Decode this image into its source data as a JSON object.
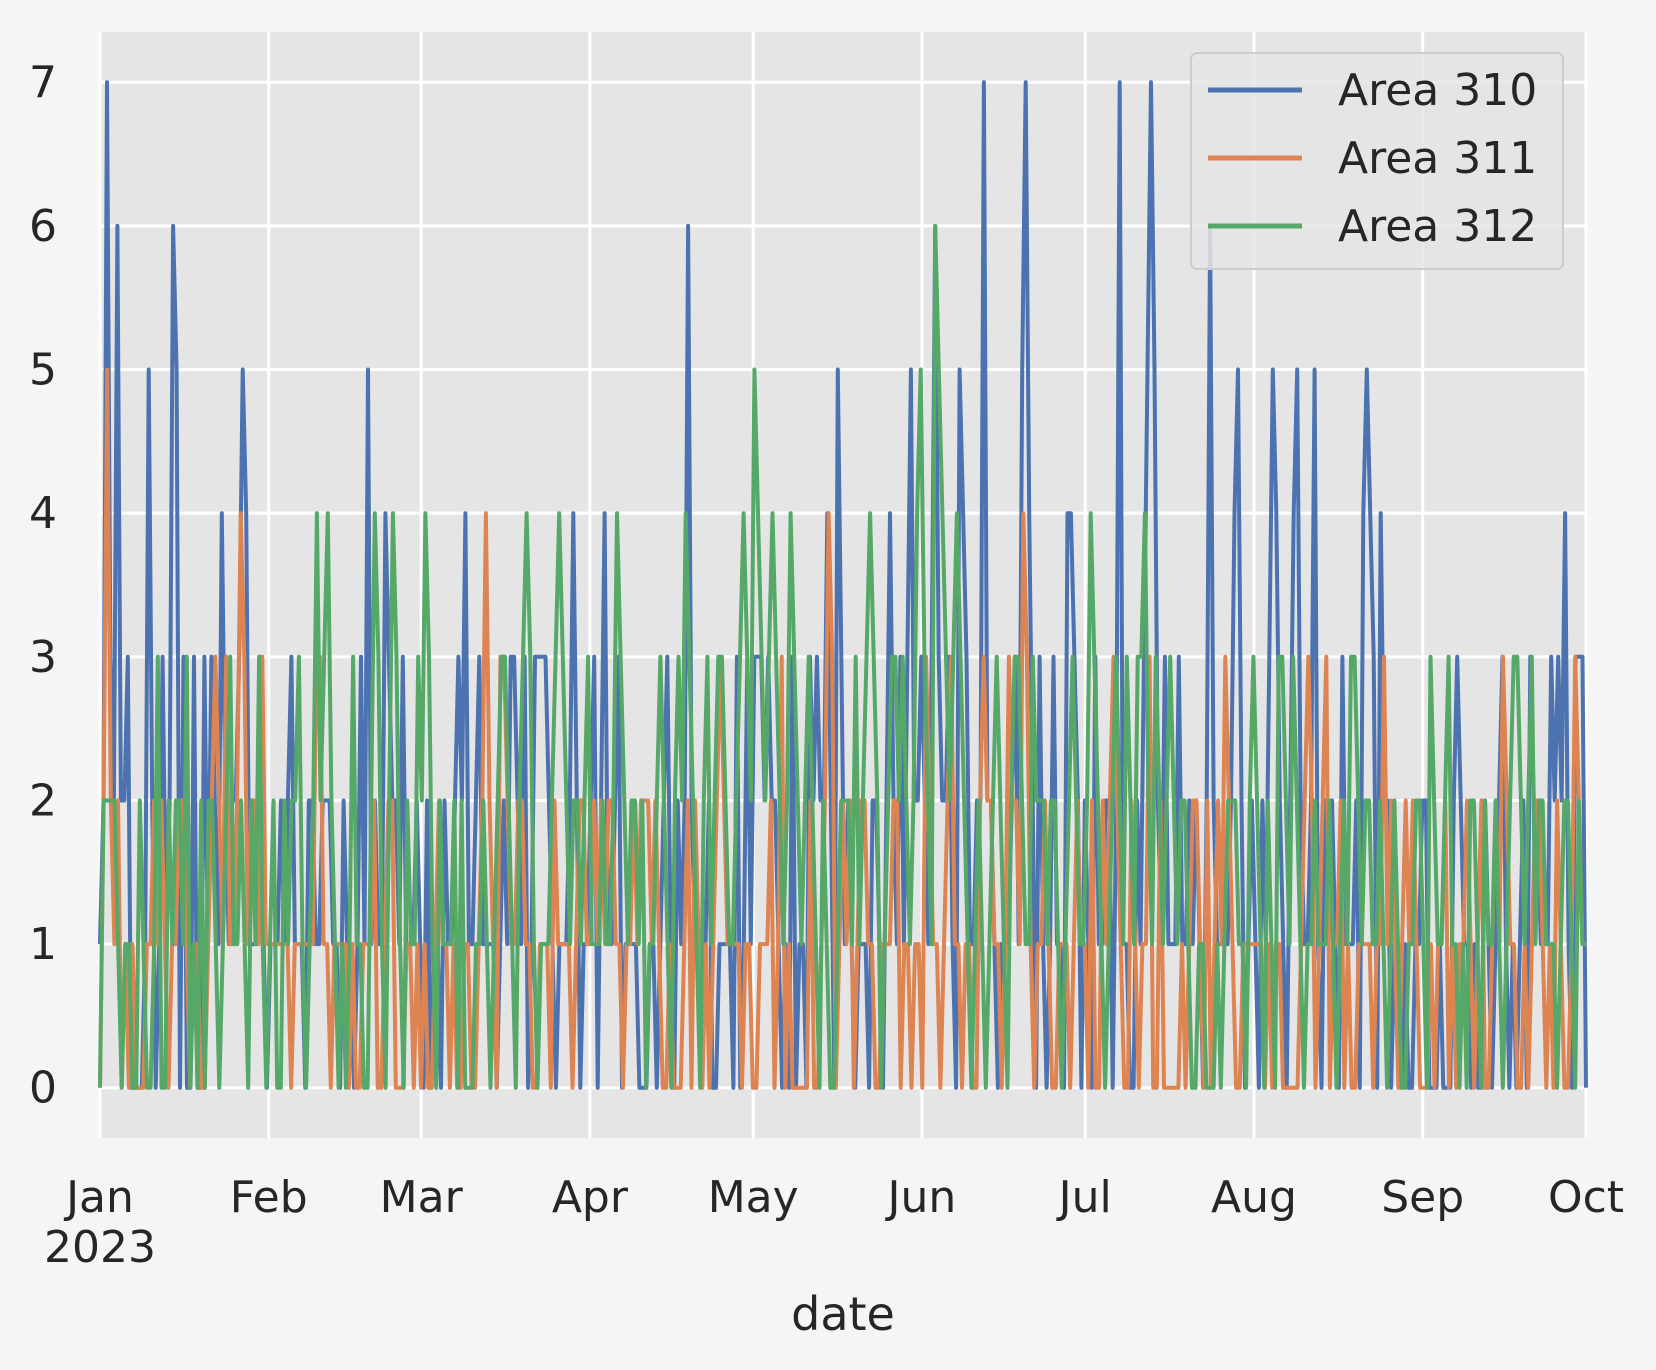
{
  "chart_data": {
    "type": "line",
    "title": "",
    "xlabel": "date",
    "ylabel": "",
    "x_start": "2023-01-01",
    "x_end": "2023-10-01",
    "xlim": [
      "2023-01-01",
      "2023-10-01"
    ],
    "ylim": [
      -0.35,
      7.35
    ],
    "grid": true,
    "legend_position": "top-right",
    "background": "#e5e5e5",
    "y_ticks": [
      "0",
      "1",
      "2",
      "3",
      "4",
      "5",
      "6",
      "7"
    ],
    "x_ticks": [
      {
        "date": "2023-01-01",
        "label": "Jan",
        "sublabel": "2023"
      },
      {
        "date": "2023-02-01",
        "label": "Feb",
        "sublabel": ""
      },
      {
        "date": "2023-03-01",
        "label": "Mar",
        "sublabel": ""
      },
      {
        "date": "2023-04-01",
        "label": "Apr",
        "sublabel": ""
      },
      {
        "date": "2023-05-01",
        "label": "May",
        "sublabel": ""
      },
      {
        "date": "2023-06-01",
        "label": "Jun",
        "sublabel": ""
      },
      {
        "date": "2023-07-01",
        "label": "Jul",
        "sublabel": ""
      },
      {
        "date": "2023-08-01",
        "label": "Aug",
        "sublabel": ""
      },
      {
        "date": "2023-09-01",
        "label": "Sep",
        "sublabel": ""
      },
      {
        "date": "2023-10-01",
        "label": "Oct",
        "sublabel": ""
      }
    ],
    "series": [
      {
        "name": "Area 310",
        "color": "#4c72b0",
        "values": [
          1,
          2,
          7,
          3,
          2,
          6,
          2,
          2,
          3,
          0,
          0,
          0,
          0,
          1,
          5,
          2,
          0,
          1,
          3,
          1,
          2,
          6,
          5,
          0,
          3,
          0,
          0,
          3,
          0,
          0,
          3,
          1,
          3,
          2,
          1,
          4,
          2,
          1,
          2,
          2,
          3,
          5,
          4,
          1,
          1,
          1,
          3,
          1,
          0,
          1,
          1,
          1,
          2,
          1,
          2,
          3,
          1,
          1,
          1,
          0,
          2,
          2,
          1,
          1,
          2,
          2,
          2,
          1,
          1,
          0,
          2,
          1,
          1,
          0,
          1,
          3,
          1,
          5,
          1,
          2,
          1,
          1,
          4,
          3,
          2,
          2,
          1,
          3,
          1,
          1,
          1,
          2,
          1,
          0,
          2,
          0,
          1,
          1,
          0,
          2,
          1,
          1,
          2,
          3,
          2,
          4,
          1,
          1,
          2,
          3,
          1,
          1,
          1,
          1,
          0,
          1,
          2,
          1,
          3,
          3,
          2,
          1,
          3,
          0,
          1,
          3,
          3,
          3,
          3,
          2,
          1,
          0,
          1,
          1,
          1,
          2,
          4,
          2,
          0,
          1,
          1,
          2,
          3,
          0,
          2,
          4,
          1,
          1,
          2,
          3,
          0,
          1,
          1,
          1,
          1,
          0,
          0,
          0,
          1,
          1,
          0,
          1,
          2,
          3,
          1,
          0,
          2,
          1,
          2,
          6,
          2,
          1,
          1,
          1,
          1,
          2,
          0,
          0,
          1,
          1,
          1,
          1,
          0,
          3,
          0,
          1,
          3,
          1,
          3,
          3,
          3,
          2,
          3,
          2,
          2,
          1,
          0,
          1,
          0,
          3,
          0,
          1,
          1,
          0,
          3,
          2,
          3,
          2,
          2,
          4,
          2,
          0,
          5,
          3,
          1,
          2,
          1,
          0,
          1,
          1,
          1,
          0,
          2,
          2,
          1,
          0,
          2,
          4,
          2,
          1,
          3,
          1,
          3,
          5,
          2,
          2,
          3,
          2,
          1,
          3,
          6,
          3,
          2,
          2,
          3,
          1,
          0,
          5,
          4,
          3,
          1,
          1,
          2,
          2,
          7,
          2,
          2,
          1,
          0,
          1,
          1,
          1,
          2,
          3,
          1,
          5,
          7,
          4,
          2,
          0,
          3,
          1,
          0,
          1,
          3,
          1,
          1,
          0,
          4,
          4,
          3,
          2,
          0,
          2,
          1,
          0,
          3,
          1,
          1,
          2,
          2,
          0,
          2,
          7,
          1,
          1,
          0,
          0,
          2,
          1,
          3,
          5,
          7,
          5,
          2,
          1,
          3,
          1,
          1,
          1,
          3,
          1,
          1,
          2,
          1,
          2,
          1,
          0,
          2,
          6,
          2,
          1,
          1,
          1,
          1,
          2,
          4,
          5,
          2,
          0,
          1,
          2,
          1,
          0,
          2,
          1,
          3,
          5,
          4,
          2,
          1,
          0,
          2,
          4,
          5,
          2,
          1,
          1,
          2,
          5,
          1,
          0,
          2,
          1,
          2,
          1,
          0,
          3,
          1,
          1,
          1,
          2,
          0,
          4,
          5,
          4,
          3,
          0,
          4,
          2,
          2,
          0,
          1,
          1,
          0,
          1,
          0,
          0,
          1,
          1,
          2,
          2,
          0,
          0,
          0,
          1,
          0,
          0,
          0,
          2,
          3,
          2,
          1,
          1,
          0,
          1,
          0,
          0,
          2,
          1,
          0,
          1,
          2,
          3,
          1,
          0,
          1,
          0,
          1,
          2,
          0,
          3,
          2,
          2,
          1,
          1,
          1,
          3,
          2,
          3,
          2,
          4,
          1,
          0,
          3,
          3,
          3,
          0
        ]
      },
      {
        "name": "Area 311",
        "color": "#dd8452",
        "values": [
          0,
          2,
          5,
          2,
          1,
          2,
          0,
          1,
          0,
          1,
          0,
          0,
          0,
          1,
          1,
          2,
          1,
          2,
          1,
          0,
          1,
          1,
          2,
          2,
          1,
          0,
          1,
          1,
          0,
          0,
          1,
          2,
          3,
          2,
          1,
          3,
          1,
          1,
          2,
          4,
          3,
          1,
          2,
          2,
          1,
          3,
          1,
          1,
          1,
          1,
          1,
          1,
          1,
          0,
          1,
          1,
          1,
          1,
          1,
          1,
          3,
          3,
          1,
          1,
          0,
          1,
          1,
          1,
          1,
          0,
          1,
          0,
          0,
          1,
          1,
          1,
          2,
          0,
          0,
          1,
          2,
          2,
          0,
          0,
          0,
          1,
          1,
          0,
          1,
          0,
          1,
          0,
          0,
          1,
          2,
          1,
          1,
          0,
          1,
          0,
          0,
          1,
          1,
          0,
          0,
          1,
          2,
          4,
          2,
          1,
          0,
          3,
          3,
          2,
          1,
          1,
          2,
          2,
          1,
          1,
          0,
          0,
          1,
          1,
          1,
          0,
          2,
          1,
          1,
          1,
          1,
          0,
          1,
          2,
          2,
          1,
          1,
          2,
          1,
          2,
          1,
          2,
          2,
          1,
          1,
          0,
          1,
          1,
          2,
          1,
          2,
          2,
          2,
          1,
          2,
          1,
          0,
          0,
          1,
          0,
          0,
          0,
          1,
          2,
          0,
          2,
          1,
          0,
          1,
          0,
          1,
          2,
          3,
          2,
          1,
          1,
          1,
          1,
          0,
          1,
          1,
          0,
          0,
          1,
          1,
          1,
          2,
          0,
          1,
          3,
          0,
          1,
          0,
          0,
          0,
          0,
          0,
          2,
          0,
          0,
          1,
          2,
          4,
          3,
          0,
          1,
          2,
          1,
          2,
          0,
          1,
          2,
          2,
          1,
          1,
          0,
          0,
          1,
          1,
          1,
          2,
          2,
          0,
          1,
          1,
          0,
          1,
          1,
          0,
          3,
          2,
          1,
          1,
          0,
          1,
          2,
          3,
          1,
          1,
          0,
          1,
          1,
          0,
          0,
          2,
          3,
          2,
          2,
          1,
          1,
          0,
          1,
          3,
          2,
          2,
          1,
          4,
          3,
          1,
          0,
          1,
          1,
          2,
          1,
          0,
          0,
          1,
          1,
          1,
          0,
          1,
          2,
          1,
          1,
          0,
          2,
          0,
          0,
          2,
          1,
          2,
          3,
          2,
          1,
          0,
          0,
          2,
          1,
          0,
          1,
          1,
          3,
          0,
          0,
          2,
          0,
          0,
          0,
          0,
          0,
          1,
          0,
          1,
          2,
          2,
          1,
          0,
          2,
          0,
          1,
          2,
          1,
          3,
          2,
          1,
          0,
          0,
          1,
          1,
          1,
          1,
          1,
          1,
          0,
          1,
          0,
          1,
          1,
          0,
          0,
          0,
          0,
          0,
          1,
          2,
          3,
          2,
          0,
          1,
          2,
          3,
          0,
          1,
          1,
          2,
          0,
          1,
          0,
          0,
          1,
          1,
          1,
          1,
          0,
          1,
          1,
          3,
          1,
          2,
          1,
          0,
          1,
          2,
          1,
          2,
          1,
          0,
          0,
          0,
          1,
          0,
          1,
          1,
          2,
          0,
          1,
          0,
          1,
          1,
          2,
          1,
          0,
          1,
          2,
          0,
          0,
          1,
          2,
          1,
          3,
          2,
          1,
          1,
          0,
          0,
          1,
          0,
          1,
          2,
          2,
          1,
          0,
          1,
          0,
          2,
          1,
          0,
          0,
          1,
          3,
          2,
          1,
          1
        ]
      },
      {
        "name": "Area 312",
        "color": "#55a868",
        "values": [
          0,
          2,
          2,
          2,
          2,
          1,
          0,
          1,
          1,
          0,
          0,
          2,
          1,
          0,
          0,
          1,
          3,
          0,
          0,
          2,
          1,
          2,
          2,
          1,
          3,
          0,
          1,
          0,
          2,
          0,
          2,
          2,
          1,
          0,
          1,
          2,
          3,
          1,
          1,
          2,
          1,
          0,
          2,
          1,
          3,
          1,
          0,
          1,
          2,
          0,
          0,
          2,
          1,
          2,
          2,
          3,
          1,
          0,
          1,
          2,
          4,
          2,
          3,
          4,
          2,
          1,
          0,
          1,
          0,
          1,
          3,
          1,
          1,
          0,
          0,
          2,
          4,
          3,
          1,
          0,
          2,
          4,
          3,
          1,
          0,
          2,
          1,
          1,
          3,
          2,
          4,
          3,
          1,
          0,
          2,
          1,
          1,
          1,
          2,
          0,
          2,
          0,
          0,
          0,
          1,
          1,
          2,
          1,
          0,
          1,
          2,
          3,
          3,
          2,
          1,
          0,
          2,
          3,
          4,
          3,
          1,
          0,
          1,
          1,
          1,
          2,
          3,
          4,
          3,
          2,
          1,
          2,
          2,
          1,
          2,
          3,
          1,
          1,
          1,
          2,
          1,
          1,
          2,
          4,
          3,
          2,
          1,
          2,
          2,
          1,
          2,
          0,
          1,
          1,
          2,
          3,
          2,
          1,
          0,
          2,
          3,
          2,
          4,
          3,
          2,
          1,
          0,
          2,
          3,
          1,
          2,
          3,
          3,
          2,
          1,
          1,
          2,
          3,
          4,
          3,
          2,
          5,
          4,
          3,
          2,
          3,
          4,
          3,
          2,
          1,
          2,
          4,
          3,
          2,
          1,
          2,
          3,
          2,
          1,
          0,
          2,
          1,
          0,
          0,
          1,
          2,
          2,
          2,
          1,
          3,
          1,
          2,
          3,
          4,
          3,
          2,
          0,
          1,
          2,
          3,
          3,
          2,
          3,
          2,
          1,
          2,
          4,
          5,
          3,
          2,
          1,
          6,
          5,
          4,
          3,
          2,
          3,
          4,
          3,
          2,
          1,
          0,
          1,
          2,
          1,
          0,
          1,
          2,
          3,
          2,
          1,
          0,
          2,
          3,
          3,
          2,
          1,
          1,
          3,
          2,
          2,
          2,
          1,
          2,
          2,
          1,
          0,
          1,
          2,
          3,
          2,
          1,
          1,
          2,
          4,
          3,
          2,
          1,
          0,
          1,
          2,
          3,
          2,
          1,
          3,
          2,
          1,
          3,
          3,
          4,
          2,
          1,
          3,
          2,
          1,
          2,
          3,
          2,
          1,
          2,
          2,
          1,
          0,
          0,
          1,
          1,
          0,
          0,
          0,
          1,
          0,
          1,
          2,
          2,
          2,
          1,
          1,
          0,
          2,
          3,
          2,
          1,
          0,
          2,
          1,
          0,
          3,
          3,
          2,
          1,
          3,
          2,
          1,
          0,
          1,
          1,
          2,
          1,
          1,
          1,
          2,
          1,
          0,
          1,
          2,
          1,
          3,
          3,
          2,
          1,
          2,
          2,
          1,
          1,
          2,
          1,
          0,
          1,
          2,
          1,
          0,
          0,
          1,
          1,
          2,
          2,
          1,
          0,
          3,
          2,
          1,
          1,
          2,
          3,
          1,
          1,
          0,
          1,
          0,
          2,
          2,
          1,
          0,
          2,
          1,
          1,
          2,
          1,
          0,
          1,
          2,
          3,
          3,
          2,
          1,
          2,
          3,
          1,
          2,
          2,
          1,
          1,
          1,
          0,
          1,
          2,
          2,
          1,
          0,
          2,
          1,
          1
        ]
      }
    ]
  }
}
